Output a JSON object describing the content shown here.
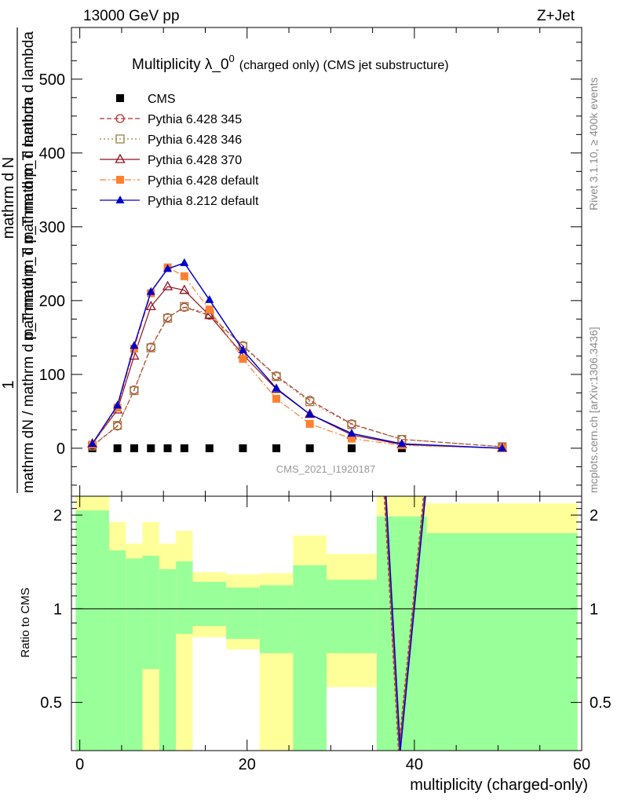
{
  "header": {
    "beam": "13000 GeV pp",
    "process": "Z+Jet"
  },
  "side": {
    "rivet": "Rivet 3.1.10, ≥ 400k events",
    "mcplots": "mcplots.cern.ch [arXiv:1306.3436]"
  },
  "chart_data": {
    "type": "line",
    "title_main": "Multiplicity λ_0",
    "title_sup": "0",
    "title_sub": "(charged only) (CMS jet substructure)",
    "watermark": "CMS_2021_I1920187",
    "xlabel": "multiplicity (charged-only)",
    "ylabel_top": "1",
    "ylabel_frac": "mathrm dN / mathrm d p_T mathrm d p_T mathrm d lambda",
    "ylabel_numer": "mathrm d²N",
    "ylabel_numer_display": "mathrm d N",
    "ylabel_denom": "mathrm d p_T mathrm d p_T mathrm d lambda",
    "ylabel_ratio": "Ratio to CMS",
    "xlim": [
      -1,
      60
    ],
    "ylim": [
      -65,
      570
    ],
    "ratio_ylim": [
      0.35,
      2.3
    ],
    "x_ticks": [
      "0",
      "20",
      "40",
      "60"
    ],
    "y_ticks": [
      "0",
      "100",
      "200",
      "300",
      "400",
      "500"
    ],
    "ratio_ticks": [
      "0.5",
      "1",
      "2"
    ],
    "x": [
      1.5,
      4.5,
      6.5,
      8.5,
      10.5,
      12.5,
      15.5,
      19.5,
      23.5,
      27.5,
      32.5,
      38.5,
      50.5
    ],
    "series": [
      {
        "name": "CMS",
        "values": [
          0,
          0,
          0,
          0,
          0,
          0,
          0,
          0,
          0,
          0,
          0,
          0,
          0
        ]
      },
      {
        "name": "Pythia 6.428 345",
        "values": [
          3,
          30,
          79,
          137,
          177,
          191,
          180,
          139,
          98,
          65,
          33,
          12,
          2
        ]
      },
      {
        "name": "Pythia 6.428 346",
        "values": [
          3,
          31,
          78,
          136,
          176,
          192,
          182,
          138,
          97,
          63,
          32,
          12,
          2
        ]
      },
      {
        "name": "Pythia 6.428 370",
        "values": [
          6,
          52,
          125,
          192,
          219,
          214,
          180,
          127,
          80,
          46,
          18,
          5,
          0
        ]
      },
      {
        "name": "Pythia 6.428 default",
        "values": [
          5,
          55,
          135,
          210,
          245,
          233,
          188,
          121,
          67,
          33,
          13,
          4,
          0
        ]
      },
      {
        "name": "Pythia 8.212 default",
        "values": [
          6,
          58,
          139,
          212,
          243,
          251,
          201,
          133,
          81,
          46,
          20,
          6,
          0
        ]
      }
    ],
    "ratio_bands": {
      "edges": [
        -0.5,
        3.5,
        5.5,
        7.5,
        9.5,
        11.5,
        13.5,
        17.5,
        21.5,
        25.5,
        29.5,
        35.5,
        41.5,
        59.5
      ],
      "green_hi": [
        2.07,
        1.54,
        1.45,
        1.48,
        1.34,
        1.42,
        1.22,
        1.17,
        1.19,
        1.38,
        1.24,
        1.98,
        1.75
      ],
      "green_lo": [
        0.35,
        0.35,
        0.35,
        0.64,
        0.35,
        0.83,
        0.88,
        0.8,
        0.72,
        0.35,
        0.72,
        0.35,
        0.35
      ],
      "yellow_hi": [
        2.3,
        1.9,
        1.62,
        1.9,
        1.62,
        1.78,
        1.31,
        1.29,
        1.3,
        1.72,
        1.5,
        2.3,
        2.18
      ],
      "yellow_lo": [
        0.35,
        0.35,
        0.35,
        0.35,
        0.35,
        0.35,
        0.35,
        0.35,
        0.35,
        0.35,
        0.35,
        0.35,
        0.35
      ],
      "white_lo": [
        null,
        null,
        null,
        null,
        null,
        null,
        0.81,
        0.74,
        null,
        null,
        0.56,
        null,
        null
      ]
    },
    "ratio_lines_x": [
      36.5,
      38.2,
      41.2
    ],
    "legend_position": "top-left"
  }
}
